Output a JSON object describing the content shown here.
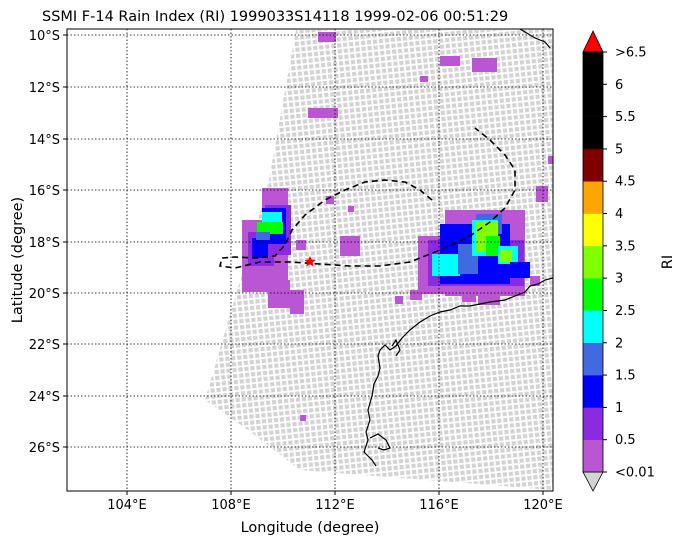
{
  "title": "SSMI F-14 Rain Index (RI) 1999033S14118 1999-02-06 00:51:29",
  "xlabel": "Longitude (degree)",
  "ylabel": "Latitude (degree)",
  "x_ticks": [
    "104°E",
    "108°E",
    "112°E",
    "116°E",
    "120°E"
  ],
  "y_ticks": [
    "10°S",
    "12°S",
    "14°S",
    "16°S",
    "18°S",
    "20°S",
    "22°S",
    "24°S",
    "26°S"
  ],
  "colorbar": {
    "label": "RI",
    "tick_labels": [
      "<0.01",
      "0.5",
      "1",
      "1.5",
      "2",
      "2.5",
      "3",
      "3.5",
      "4",
      "4.5",
      "5",
      "5.5",
      "6",
      ">6.5"
    ],
    "colors": [
      "#d3d3d3",
      "#ba55d3",
      "#8a2be2",
      "#0000ff",
      "#4169e1",
      "#00ffff",
      "#00ff00",
      "#7fff00",
      "#ffff00",
      "#ffa500",
      "#800000",
      "#000000",
      "#000000",
      "#000000",
      "#ff0000"
    ]
  },
  "map": {
    "lon_range": [
      101.8,
      120.5
    ],
    "lat_range": [
      -27.7,
      -9.8
    ],
    "swath_color": "#d3d3d3",
    "track_style": "dashed black",
    "storm_center_marker": "red star",
    "storm_center": [
      111.0,
      -18.8
    ]
  }
}
